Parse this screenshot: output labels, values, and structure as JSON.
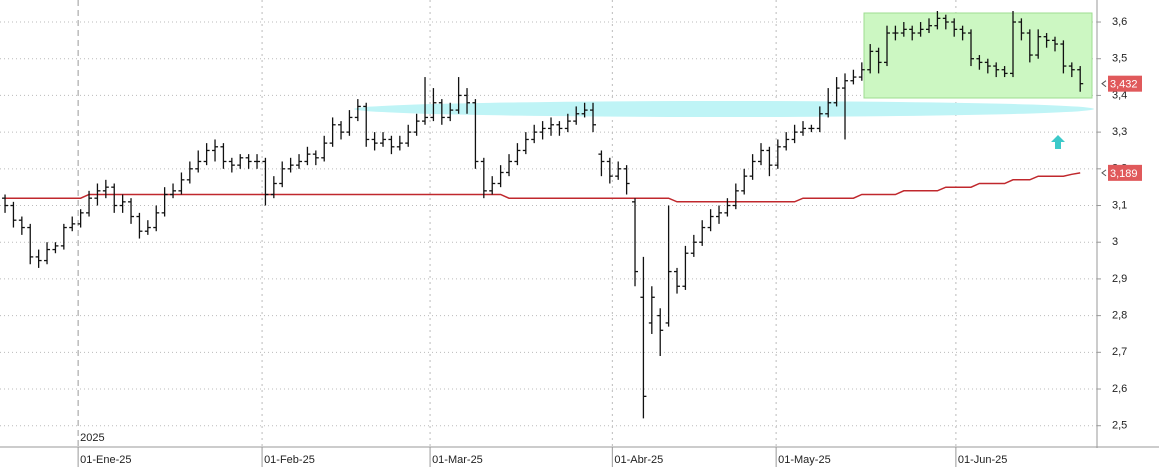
{
  "chart_data": {
    "type": "ohlc",
    "year_label": "2025",
    "xlim": [
      -0.6,
      130
    ],
    "xticks": [
      {
        "value": 8.7,
        "label": "01-Ene-25"
      },
      {
        "value": 30.6,
        "label": "01-Feb-25"
      },
      {
        "value": 50.6,
        "label": "01-Mar-25"
      },
      {
        "value": 72.3,
        "label": "01-Abr-25"
      },
      {
        "value": 91.8,
        "label": "01-May-25"
      },
      {
        "value": 113.2,
        "label": "01-Jun-25"
      }
    ],
    "ylim": [
      2.442,
      3.66
    ],
    "yticks": [
      {
        "value": 2.5,
        "label": "2,5"
      },
      {
        "value": 2.6,
        "label": "2,6"
      },
      {
        "value": 2.7,
        "label": "2,7"
      },
      {
        "value": 2.8,
        "label": "2,8"
      },
      {
        "value": 2.9,
        "label": "2,9"
      },
      3,
      {
        "value": 3.1,
        "label": "3,1"
      },
      {
        "value": 3.2,
        "label": "3,2"
      },
      {
        "value": 3.3,
        "label": "3,3"
      },
      {
        "value": 3.4,
        "label": "3,4"
      },
      {
        "value": 3.5,
        "label": "3,5"
      },
      {
        "value": 3.6,
        "label": "3,6"
      }
    ],
    "grid": true,
    "bar_color": "#111111",
    "bars": [
      [
        3.12,
        3.13,
        3.08,
        3.1
      ],
      [
        3.1,
        3.11,
        3.04,
        3.06
      ],
      [
        3.06,
        3.07,
        3.02,
        3.04
      ],
      [
        3.04,
        3.05,
        2.94,
        2.96
      ],
      [
        2.96,
        2.98,
        2.93,
        2.95
      ],
      [
        2.95,
        3.0,
        2.94,
        2.98
      ],
      [
        2.98,
        3.0,
        2.97,
        2.99
      ],
      [
        2.99,
        3.05,
        2.98,
        3.04
      ],
      [
        3.04,
        3.07,
        3.03,
        3.05
      ],
      [
        3.05,
        3.09,
        3.04,
        3.08
      ],
      [
        3.08,
        3.14,
        3.07,
        3.12
      ],
      [
        3.12,
        3.16,
        3.1,
        3.14
      ],
      [
        3.14,
        3.17,
        3.12,
        3.15
      ],
      [
        3.15,
        3.16,
        3.08,
        3.1
      ],
      [
        3.1,
        3.13,
        3.08,
        3.11
      ],
      [
        3.11,
        3.12,
        3.05,
        3.07
      ],
      [
        3.07,
        3.08,
        3.01,
        3.03
      ],
      [
        3.03,
        3.06,
        3.02,
        3.04
      ],
      [
        3.04,
        3.1,
        3.03,
        3.08
      ],
      [
        3.08,
        3.15,
        3.07,
        3.13
      ],
      [
        3.13,
        3.16,
        3.12,
        3.14
      ],
      [
        3.14,
        3.19,
        3.13,
        3.17
      ],
      [
        3.17,
        3.22,
        3.16,
        3.2
      ],
      [
        3.2,
        3.25,
        3.19,
        3.22
      ],
      [
        3.22,
        3.27,
        3.21,
        3.25
      ],
      [
        3.25,
        3.28,
        3.22,
        3.26
      ],
      [
        3.26,
        3.27,
        3.2,
        3.22
      ],
      [
        3.22,
        3.23,
        3.19,
        3.21
      ],
      [
        3.21,
        3.24,
        3.2,
        3.23
      ],
      [
        3.23,
        3.24,
        3.2,
        3.22
      ],
      [
        3.22,
        3.24,
        3.2,
        3.22
      ],
      [
        3.22,
        3.23,
        3.1,
        3.13
      ],
      [
        3.13,
        3.18,
        3.12,
        3.16
      ],
      [
        3.16,
        3.22,
        3.15,
        3.2
      ],
      [
        3.2,
        3.23,
        3.19,
        3.21
      ],
      [
        3.21,
        3.24,
        3.2,
        3.22
      ],
      [
        3.22,
        3.26,
        3.21,
        3.24
      ],
      [
        3.24,
        3.25,
        3.21,
        3.23
      ],
      [
        3.23,
        3.29,
        3.22,
        3.27
      ],
      [
        3.27,
        3.34,
        3.26,
        3.32
      ],
      [
        3.32,
        3.33,
        3.28,
        3.3
      ],
      [
        3.3,
        3.36,
        3.29,
        3.34
      ],
      [
        3.34,
        3.39,
        3.33,
        3.37
      ],
      [
        3.37,
        3.38,
        3.26,
        3.28
      ],
      [
        3.28,
        3.3,
        3.25,
        3.27
      ],
      [
        3.27,
        3.3,
        3.26,
        3.28
      ],
      [
        3.28,
        3.29,
        3.24,
        3.26
      ],
      [
        3.26,
        3.29,
        3.25,
        3.27
      ],
      [
        3.27,
        3.32,
        3.26,
        3.3
      ],
      [
        3.3,
        3.35,
        3.29,
        3.33
      ],
      [
        3.33,
        3.45,
        3.32,
        3.34
      ],
      [
        3.34,
        3.42,
        3.33,
        3.38
      ],
      [
        3.38,
        3.39,
        3.32,
        3.34
      ],
      [
        3.34,
        3.38,
        3.33,
        3.36
      ],
      [
        3.36,
        3.45,
        3.35,
        3.4
      ],
      [
        3.4,
        3.42,
        3.35,
        3.38
      ],
      [
        3.38,
        3.39,
        3.2,
        3.22
      ],
      [
        3.22,
        3.23,
        3.12,
        3.14
      ],
      [
        3.14,
        3.18,
        3.13,
        3.16
      ],
      [
        3.16,
        3.21,
        3.15,
        3.19
      ],
      [
        3.19,
        3.24,
        3.18,
        3.22
      ],
      [
        3.22,
        3.27,
        3.21,
        3.25
      ],
      [
        3.25,
        3.3,
        3.24,
        3.28
      ],
      [
        3.28,
        3.32,
        3.27,
        3.3
      ],
      [
        3.3,
        3.33,
        3.28,
        3.31
      ],
      [
        3.31,
        3.34,
        3.29,
        3.32
      ],
      [
        3.32,
        3.33,
        3.29,
        3.31
      ],
      [
        3.31,
        3.35,
        3.3,
        3.33
      ],
      [
        3.33,
        3.37,
        3.32,
        3.35
      ],
      [
        3.35,
        3.38,
        3.34,
        3.36
      ],
      [
        3.36,
        3.38,
        3.3,
        3.32
      ],
      [
        3.24,
        3.25,
        3.18,
        3.22
      ],
      [
        3.22,
        3.23,
        3.16,
        3.18
      ],
      [
        3.18,
        3.22,
        3.17,
        3.2
      ],
      [
        3.2,
        3.21,
        3.13,
        3.16
      ],
      [
        3.11,
        3.12,
        2.88,
        2.92
      ],
      [
        2.85,
        2.96,
        2.52,
        2.58
      ],
      [
        2.78,
        2.88,
        2.75,
        2.85
      ],
      [
        2.8,
        2.82,
        2.69,
        2.76
      ],
      [
        2.78,
        3.1,
        2.77,
        2.92
      ],
      [
        2.92,
        2.93,
        2.86,
        2.88
      ],
      [
        2.88,
        2.99,
        2.87,
        2.97
      ],
      [
        2.97,
        3.02,
        2.96,
        3.0
      ],
      [
        3.0,
        3.06,
        2.99,
        3.04
      ],
      [
        3.04,
        3.09,
        3.03,
        3.07
      ],
      [
        3.07,
        3.1,
        3.05,
        3.08
      ],
      [
        3.08,
        3.12,
        3.07,
        3.1
      ],
      [
        3.1,
        3.16,
        3.09,
        3.14
      ],
      [
        3.14,
        3.2,
        3.13,
        3.18
      ],
      [
        3.18,
        3.24,
        3.17,
        3.22
      ],
      [
        3.22,
        3.27,
        3.21,
        3.25
      ],
      [
        3.25,
        3.26,
        3.18,
        3.21
      ],
      [
        3.21,
        3.28,
        3.2,
        3.26
      ],
      [
        3.26,
        3.3,
        3.25,
        3.28
      ],
      [
        3.28,
        3.32,
        3.27,
        3.3
      ],
      [
        3.3,
        3.33,
        3.29,
        3.31
      ],
      [
        3.31,
        3.32,
        3.3,
        3.31
      ],
      [
        3.31,
        3.37,
        3.3,
        3.35
      ],
      [
        3.35,
        3.42,
        3.34,
        3.38
      ],
      [
        3.38,
        3.45,
        3.37,
        3.42
      ],
      [
        3.42,
        3.46,
        3.28,
        3.44
      ],
      [
        3.44,
        3.47,
        3.43,
        3.45
      ],
      [
        3.45,
        3.49,
        3.44,
        3.47
      ],
      [
        3.47,
        3.54,
        3.46,
        3.52
      ],
      [
        3.52,
        3.53,
        3.46,
        3.49
      ],
      [
        3.49,
        3.59,
        3.48,
        3.57
      ],
      [
        3.57,
        3.59,
        3.55,
        3.57
      ],
      [
        3.57,
        3.6,
        3.56,
        3.58
      ],
      [
        3.58,
        3.59,
        3.55,
        3.57
      ],
      [
        3.57,
        3.6,
        3.56,
        3.58
      ],
      [
        3.58,
        3.61,
        3.57,
        3.59
      ],
      [
        3.59,
        3.63,
        3.58,
        3.61
      ],
      [
        3.61,
        3.62,
        3.58,
        3.6
      ],
      [
        3.6,
        3.61,
        3.56,
        3.58
      ],
      [
        3.58,
        3.59,
        3.55,
        3.57
      ],
      [
        3.57,
        3.58,
        3.48,
        3.5
      ],
      [
        3.5,
        3.51,
        3.47,
        3.49
      ],
      [
        3.49,
        3.5,
        3.46,
        3.48
      ],
      [
        3.48,
        3.49,
        3.45,
        3.47
      ],
      [
        3.47,
        3.48,
        3.45,
        3.46
      ],
      [
        3.46,
        3.63,
        3.45,
        3.6
      ],
      [
        3.6,
        3.61,
        3.55,
        3.57
      ],
      [
        3.57,
        3.58,
        3.49,
        3.51
      ],
      [
        3.51,
        3.58,
        3.5,
        3.56
      ],
      [
        3.56,
        3.57,
        3.53,
        3.55
      ],
      [
        3.55,
        3.56,
        3.52,
        3.54
      ],
      [
        3.54,
        3.55,
        3.46,
        3.48
      ],
      [
        3.48,
        3.49,
        3.45,
        3.47
      ],
      [
        3.47,
        3.48,
        3.41,
        3.432
      ]
    ],
    "ma_color": "#c0282d",
    "ma": [
      3.12,
      3.12,
      3.12,
      3.12,
      3.12,
      3.12,
      3.12,
      3.12,
      3.12,
      3.12,
      3.13,
      3.13,
      3.13,
      3.13,
      3.13,
      3.13,
      3.13,
      3.13,
      3.13,
      3.13,
      3.13,
      3.13,
      3.13,
      3.13,
      3.13,
      3.13,
      3.13,
      3.13,
      3.13,
      3.13,
      3.13,
      3.13,
      3.13,
      3.13,
      3.13,
      3.13,
      3.13,
      3.13,
      3.13,
      3.13,
      3.13,
      3.13,
      3.13,
      3.13,
      3.13,
      3.13,
      3.13,
      3.13,
      3.13,
      3.13,
      3.13,
      3.13,
      3.13,
      3.13,
      3.13,
      3.13,
      3.13,
      3.13,
      3.13,
      3.13,
      3.12,
      3.12,
      3.12,
      3.12,
      3.12,
      3.12,
      3.12,
      3.12,
      3.12,
      3.12,
      3.12,
      3.12,
      3.12,
      3.12,
      3.12,
      3.12,
      3.12,
      3.12,
      3.12,
      3.12,
      3.11,
      3.11,
      3.11,
      3.11,
      3.11,
      3.11,
      3.11,
      3.11,
      3.11,
      3.11,
      3.11,
      3.11,
      3.11,
      3.11,
      3.11,
      3.12,
      3.12,
      3.12,
      3.12,
      3.12,
      3.12,
      3.12,
      3.13,
      3.13,
      3.13,
      3.13,
      3.13,
      3.14,
      3.14,
      3.14,
      3.14,
      3.14,
      3.15,
      3.15,
      3.15,
      3.15,
      3.16,
      3.16,
      3.16,
      3.16,
      3.17,
      3.17,
      3.17,
      3.18,
      3.18,
      3.18,
      3.18,
      3.185,
      3.189
    ],
    "price_labels": [
      {
        "value": 3.432,
        "label": "3,432",
        "color": "#e0595b"
      },
      {
        "value": 3.189,
        "label": "3,189",
        "color": "#e0595b"
      }
    ]
  }
}
